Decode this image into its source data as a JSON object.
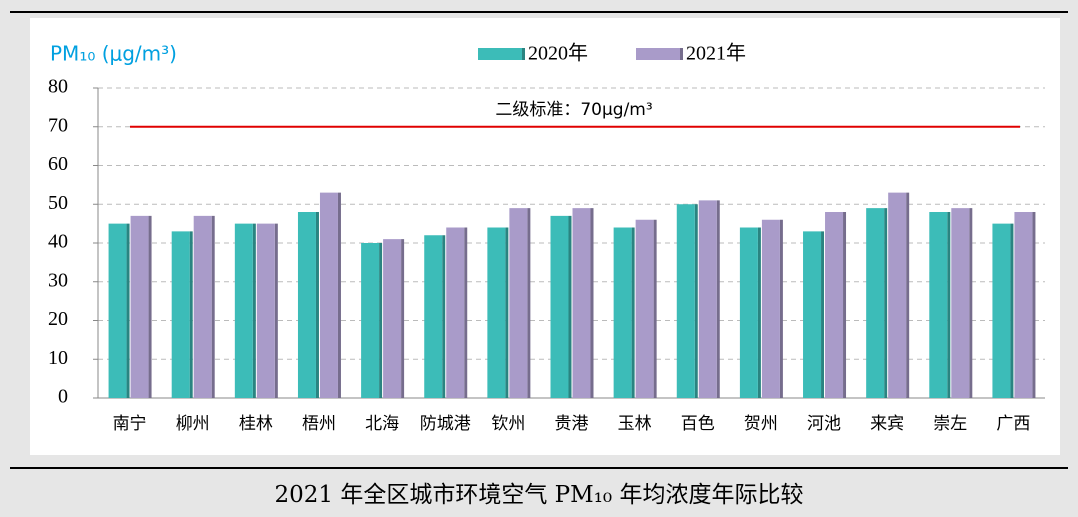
{
  "chart_data": {
    "type": "bar",
    "y_label": "PM₁₀ (μg/m³)",
    "caption": "2021 年全区城市环境空气 PM₁₀ 年均浓度年际比较",
    "categories": [
      "南宁",
      "柳州",
      "桂林",
      "梧州",
      "北海",
      "防城港",
      "钦州",
      "贵港",
      "玉林",
      "百色",
      "贺州",
      "河池",
      "来宾",
      "崇左",
      "广西"
    ],
    "series": [
      {
        "name": "2020年",
        "color": "#3cbcb8",
        "values": [
          45,
          43,
          45,
          48,
          40,
          42,
          44,
          47,
          44,
          50,
          44,
          43,
          49,
          48,
          45
        ]
      },
      {
        "name": "2021年",
        "color": "#a99bc9",
        "values": [
          47,
          47,
          45,
          53,
          41,
          44,
          49,
          49,
          46,
          51,
          46,
          48,
          53,
          49,
          48
        ]
      }
    ],
    "reference_line": {
      "value": 70,
      "label": "二级标准：70μg/m³",
      "color": "#e00000"
    },
    "ylim": [
      0,
      80
    ],
    "yticks": [
      0,
      10,
      20,
      30,
      40,
      50,
      60,
      70,
      80
    ],
    "grid": true,
    "legend": "top"
  }
}
